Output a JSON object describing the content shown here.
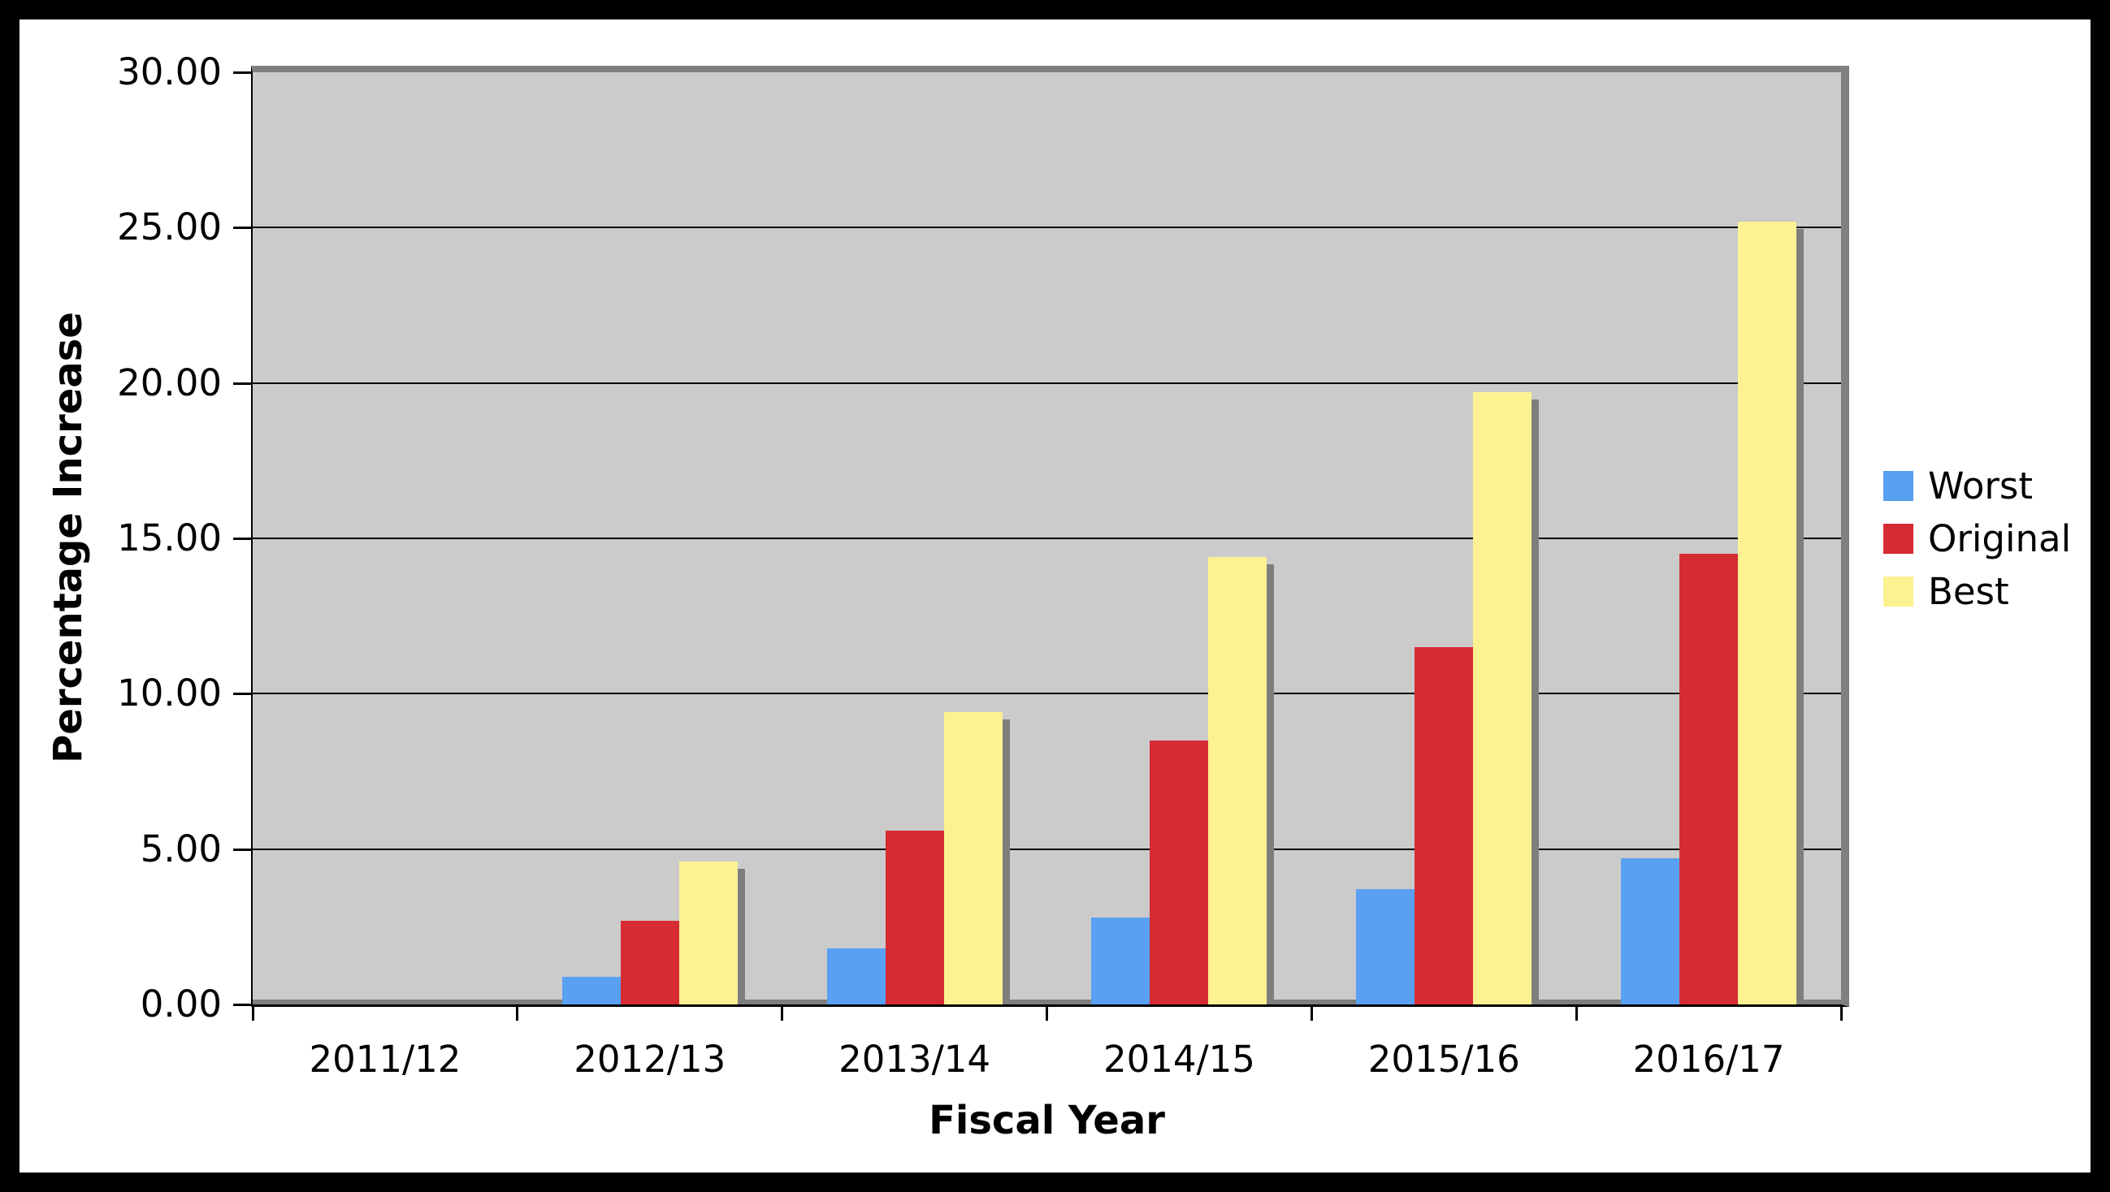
{
  "chart_data": {
    "type": "bar",
    "title": "",
    "xlabel": "Fiscal Year",
    "ylabel": "Percentage Increase",
    "categories": [
      "2011/12",
      "2012/13",
      "2013/14",
      "2014/15",
      "2015/16",
      "2016/17"
    ],
    "series": [
      {
        "name": "Worst",
        "color": "#59a0f2",
        "values": [
          0,
          0.9,
          1.8,
          2.8,
          3.7,
          4.7
        ]
      },
      {
        "name": "Original",
        "color": "#d62b32",
        "values": [
          0,
          2.7,
          5.6,
          8.5,
          11.5,
          14.5
        ]
      },
      {
        "name": "Best",
        "color": "#fcf292",
        "values": [
          0,
          4.6,
          9.4,
          14.4,
          19.7,
          25.2
        ]
      }
    ],
    "y_axis": {
      "min": 0,
      "max": 30,
      "step": 5,
      "tick_labels": [
        "30.00",
        "25.00",
        "20.00",
        "15.00",
        "10.00",
        "5.00",
        "0.00"
      ]
    },
    "legend": {
      "position": "right",
      "entries": [
        "Worst",
        "Original",
        "Best"
      ]
    },
    "grid": true,
    "colors": {
      "plot_background": "#cbcbcb",
      "gridline": "#000000",
      "shadow": "#7e7e7e",
      "plot_edge_band": "#808080",
      "frame": "#000000",
      "chart_background": "#ffffff"
    }
  }
}
